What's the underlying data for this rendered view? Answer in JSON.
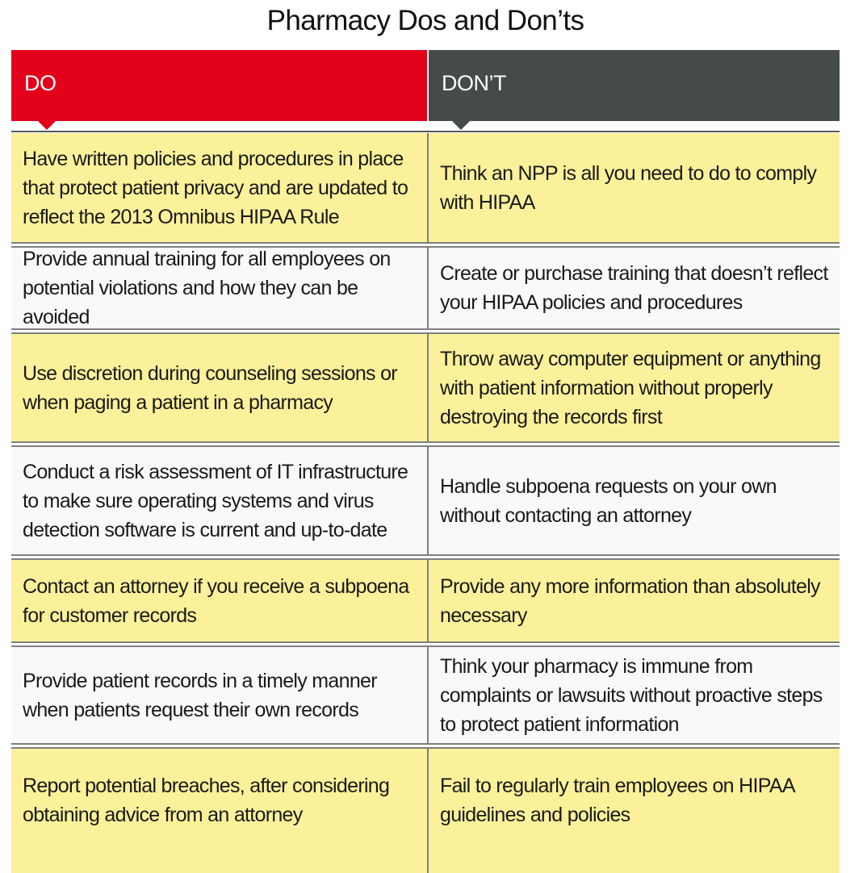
{
  "title": "Pharmacy Dos and Don’ts",
  "headers": {
    "do": "DO",
    "dont": "DON’T"
  },
  "colors": {
    "do_header": "#e3001b",
    "dont_header": "#454b4b",
    "row_yellow": "#fbf19a",
    "row_white": "#fbf8fc"
  },
  "rows": [
    {
      "do": "Have written policies and procedures in place that protect patient privacy and are updated to reflect the 2013 Omnibus HIPAA Rule",
      "dont": "Think an NPP is all you need to do to comply with HIPAA"
    },
    {
      "do": "Provide annual training for all employees on potential violations and how they can be avoided",
      "dont": "Create or purchase training that doesn’t reflect your HIPAA policies and procedures"
    },
    {
      "do": "Use discretion during counseling sessions or when paging a patient in a pharmacy",
      "dont": "Throw away computer equipment or anything with patient information without properly destroying the records first"
    },
    {
      "do": "Conduct a risk assessment of IT infrastructure to make sure operating systems and virus detection software is current and up-to-date",
      "dont": "Handle subpoena requests on your own without contacting an attorney"
    },
    {
      "do": "Contact an attorney if you receive a subpoena for customer records",
      "dont": "Provide any more information than absolutely necessary"
    },
    {
      "do": "Provide patient records in a timely manner when patients request their own records",
      "dont": "Think your pharmacy is immune from complaints or lawsuits without proactive steps to protect patient information"
    },
    {
      "do": "Report potential breaches, after considering obtaining advice from an attorney",
      "dont": "Fail to regularly train employees on HIPAA guidelines and policies"
    }
  ]
}
